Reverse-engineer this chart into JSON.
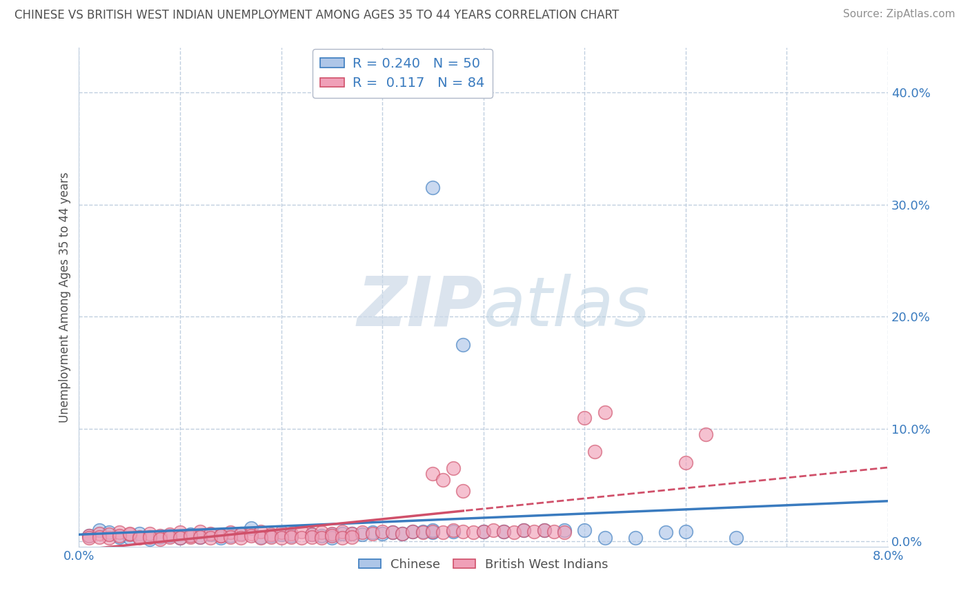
{
  "title": "CHINESE VS BRITISH WEST INDIAN UNEMPLOYMENT AMONG AGES 35 TO 44 YEARS CORRELATION CHART",
  "source": "Source: ZipAtlas.com",
  "ylabel": "Unemployment Among Ages 35 to 44 years",
  "x_min": 0.0,
  "x_max": 0.08,
  "y_min": -0.005,
  "y_max": 0.44,
  "chinese_R": 0.24,
  "chinese_N": 50,
  "bwi_R": 0.117,
  "bwi_N": 84,
  "chinese_color": "#aec6e8",
  "chinese_line_color": "#3a7bbf",
  "bwi_color": "#f0a0b8",
  "bwi_line_color": "#d0506a",
  "background_color": "#ffffff",
  "grid_color": "#c0cfe0",
  "watermark_color": "#d8e4ef",
  "title_color": "#505050",
  "source_color": "#909090",
  "ytick_values": [
    0.0,
    0.1,
    0.2,
    0.3,
    0.4
  ],
  "xtick_values": [
    0.0,
    0.01,
    0.02,
    0.03,
    0.04,
    0.05,
    0.06,
    0.07,
    0.08
  ],
  "cn_x": [
    0.001,
    0.002,
    0.003,
    0.004,
    0.005,
    0.006,
    0.007,
    0.008,
    0.009,
    0.01,
    0.011,
    0.012,
    0.013,
    0.014,
    0.015,
    0.016,
    0.017,
    0.018,
    0.019,
    0.02,
    0.021,
    0.023,
    0.024,
    0.025,
    0.026,
    0.027,
    0.028,
    0.029,
    0.03,
    0.031,
    0.032,
    0.033,
    0.034,
    0.035,
    0.035,
    0.037,
    0.038,
    0.04,
    0.042,
    0.044,
    0.046,
    0.048,
    0.05,
    0.052,
    0.055,
    0.058,
    0.06,
    0.065,
    0.035,
    0.025
  ],
  "cn_y": [
    0.005,
    0.01,
    0.008,
    0.004,
    0.003,
    0.007,
    0.002,
    0.004,
    0.005,
    0.003,
    0.006,
    0.004,
    0.006,
    0.003,
    0.005,
    0.007,
    0.012,
    0.004,
    0.005,
    0.006,
    0.005,
    0.006,
    0.005,
    0.006,
    0.007,
    0.007,
    0.006,
    0.008,
    0.007,
    0.008,
    0.007,
    0.009,
    0.009,
    0.008,
    0.01,
    0.009,
    0.175,
    0.009,
    0.009,
    0.01,
    0.01,
    0.01,
    0.01,
    0.003,
    0.003,
    0.008,
    0.009,
    0.003,
    0.315,
    0.003
  ],
  "bwi_x": [
    0.001,
    0.002,
    0.003,
    0.004,
    0.005,
    0.006,
    0.007,
    0.008,
    0.009,
    0.01,
    0.011,
    0.012,
    0.013,
    0.014,
    0.015,
    0.016,
    0.017,
    0.018,
    0.019,
    0.02,
    0.021,
    0.022,
    0.023,
    0.024,
    0.025,
    0.026,
    0.027,
    0.028,
    0.029,
    0.03,
    0.031,
    0.032,
    0.033,
    0.034,
    0.035,
    0.036,
    0.037,
    0.038,
    0.039,
    0.04,
    0.041,
    0.042,
    0.043,
    0.044,
    0.045,
    0.046,
    0.047,
    0.048,
    0.001,
    0.002,
    0.003,
    0.004,
    0.005,
    0.006,
    0.007,
    0.008,
    0.009,
    0.01,
    0.011,
    0.012,
    0.013,
    0.014,
    0.015,
    0.016,
    0.017,
    0.018,
    0.019,
    0.02,
    0.021,
    0.022,
    0.023,
    0.024,
    0.025,
    0.026,
    0.027,
    0.05,
    0.051,
    0.052,
    0.06,
    0.062,
    0.035,
    0.036,
    0.037,
    0.038
  ],
  "bwi_y": [
    0.005,
    0.007,
    0.003,
    0.008,
    0.006,
    0.004,
    0.007,
    0.005,
    0.006,
    0.008,
    0.004,
    0.009,
    0.007,
    0.005,
    0.008,
    0.006,
    0.007,
    0.009,
    0.006,
    0.008,
    0.007,
    0.009,
    0.006,
    0.008,
    0.007,
    0.009,
    0.007,
    0.008,
    0.007,
    0.009,
    0.008,
    0.007,
    0.009,
    0.008,
    0.009,
    0.008,
    0.01,
    0.009,
    0.008,
    0.009,
    0.01,
    0.009,
    0.008,
    0.01,
    0.009,
    0.01,
    0.009,
    0.008,
    0.003,
    0.004,
    0.006,
    0.005,
    0.007,
    0.003,
    0.004,
    0.002,
    0.004,
    0.003,
    0.005,
    0.004,
    0.003,
    0.005,
    0.004,
    0.003,
    0.005,
    0.003,
    0.004,
    0.003,
    0.004,
    0.003,
    0.004,
    0.003,
    0.005,
    0.003,
    0.004,
    0.11,
    0.08,
    0.115,
    0.07,
    0.095,
    0.06,
    0.055,
    0.065,
    0.045
  ]
}
